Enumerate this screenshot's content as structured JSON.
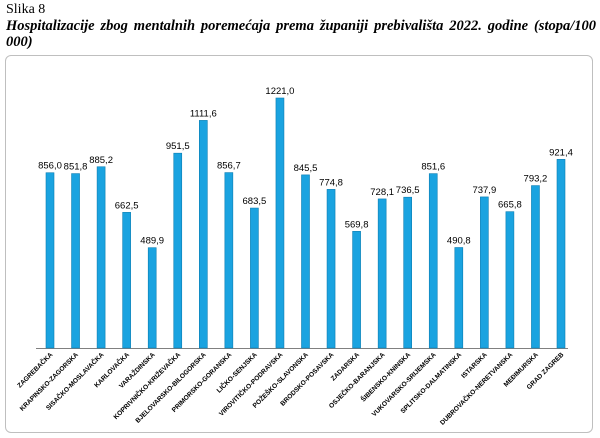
{
  "figure": {
    "label": "Slika 8",
    "title": "Hospitalizacije zbog mentalnih poremećaja prema županiji prebivališta 2022. godine (stopa/100 000)"
  },
  "colors": {
    "bar": "#1aa3e0",
    "bar_edge": "#0b7db2",
    "axis": "#808080"
  },
  "chart_data": {
    "type": "bar",
    "title": "Hospitalizacije zbog mentalnih poremećaja prema županiji prebivališta 2022. godine (stopa/100 000)",
    "categories": [
      "ZAGREBAČKA",
      "KRAPINSKO-ZAGORSKA",
      "SISAČKO-MOSLAVAČKA",
      "KARLOVAČKA",
      "VARAŽDINSKA",
      "KOPRIVNIČKO-KRIŽEVAČKA",
      "BJELOVARSKO-BILOGORSKA",
      "PRIMORSKO-GORANSKA",
      "LIČKO-SENJSKA",
      "VIROVITIČKO-PODRAVSKA",
      "POŽEŠKO-SLAVONSKA",
      "BRODSKO-POSAVSKA",
      "ZADARSKA",
      "OSJEČKO-BARANJSKA",
      "ŠIBENSKO-KNINSKA",
      "VUKOVARSKO-SRIJEMSKA",
      "SPLITSKO-DALMATINSKA",
      "ISTARSKA",
      "DUBROVAČKO-NERETVANSKA",
      "MEĐIMURSKA",
      "GRAD ZAGREB"
    ],
    "values": [
      856.0,
      851.8,
      885.2,
      662.5,
      489.9,
      951.5,
      1111.6,
      856.7,
      683.5,
      1221.0,
      845.5,
      774.8,
      569.8,
      728.1,
      736.5,
      851.6,
      490.8,
      737.9,
      665.8,
      793.2,
      921.4
    ],
    "value_labels": [
      "856,0",
      "851,8",
      "885,2",
      "662,5",
      "489,9",
      "951,5",
      "1111,6",
      "856,7",
      "683,5",
      "1221,0",
      "845,5",
      "774,8",
      "569,8",
      "728,1",
      "736,5",
      "851,6",
      "490,8",
      "737,9",
      "665,8",
      "793,2",
      "921,4"
    ],
    "ylim": [
      0,
      1221
    ],
    "grid": false,
    "legend": "none",
    "xlabel": "",
    "ylabel": ""
  }
}
